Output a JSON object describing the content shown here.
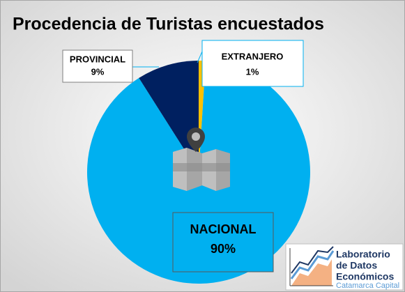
{
  "chart_data": {
    "type": "pie",
    "title": "Procedencia de Turistas encuestados",
    "categories": [
      "EXTRANJERO",
      "NACIONAL",
      "PROVINCIAL"
    ],
    "values": [
      1,
      90,
      9
    ],
    "value_labels": [
      "1%",
      "90%",
      "9%"
    ],
    "colors": [
      "#ffc000",
      "#00b0f0",
      "#002060"
    ],
    "logo": [
      "Laboratorio",
      "de Datos",
      "Económicos",
      "Catamarca Capital"
    ]
  }
}
